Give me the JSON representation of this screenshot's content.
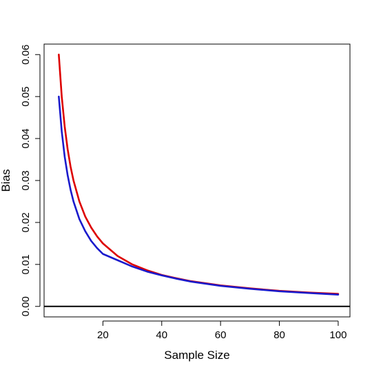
{
  "chart_data": {
    "type": "line",
    "title": "",
    "xlabel": "Sample Size",
    "ylabel": "Bias",
    "xlim": [
      0,
      104
    ],
    "ylim": [
      -0.0025,
      0.0625
    ],
    "x_ticks": [
      20,
      40,
      60,
      80,
      100
    ],
    "x_tick_labels": [
      "20",
      "40",
      "60",
      "80",
      "100"
    ],
    "y_ticks": [
      0,
      0.01,
      0.02,
      0.03,
      0.04,
      0.05,
      0.06
    ],
    "y_tick_labels": [
      "0.00",
      "0.01",
      "0.02",
      "0.03",
      "0.04",
      "0.05",
      "0.06"
    ],
    "grid": false,
    "reference_line": {
      "y": 0,
      "color": "#000000"
    },
    "series": [
      {
        "color": "#dd0000",
        "x": [
          5,
          6,
          7,
          8,
          9,
          10,
          12,
          14,
          16,
          18,
          20,
          25,
          30,
          35,
          40,
          45,
          50,
          60,
          70,
          80,
          90,
          100
        ],
        "values": [
          0.06,
          0.05,
          0.0429,
          0.0375,
          0.0333,
          0.03,
          0.025,
          0.0214,
          0.0188,
          0.0167,
          0.015,
          0.012,
          0.01,
          0.0086,
          0.0075,
          0.0067,
          0.006,
          0.005,
          0.0043,
          0.0037,
          0.0033,
          0.003
        ]
      },
      {
        "color": "#1a1acc",
        "x": [
          5,
          6,
          7,
          8,
          9,
          10,
          12,
          14,
          16,
          18,
          20,
          25,
          30,
          35,
          40,
          45,
          50,
          60,
          70,
          80,
          90,
          100
        ],
        "values": [
          0.05,
          0.0417,
          0.0357,
          0.0313,
          0.0278,
          0.025,
          0.0208,
          0.0179,
          0.0156,
          0.0139,
          0.0125,
          0.011,
          0.0095,
          0.0083,
          0.0074,
          0.0066,
          0.0059,
          0.0049,
          0.0042,
          0.0036,
          0.0032,
          0.0028
        ]
      }
    ]
  }
}
